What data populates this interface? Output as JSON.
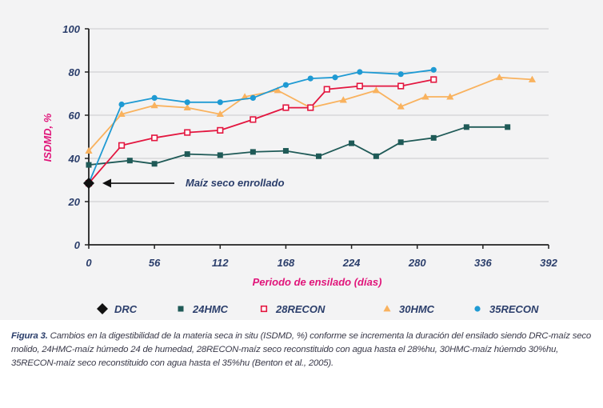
{
  "chart_data": {
    "type": "line",
    "ylabel": "ISDMD, %",
    "xlabel": "Periodo de ensilado (días)",
    "x_ticks": [
      0,
      56,
      112,
      168,
      224,
      280,
      336,
      392
    ],
    "y_ticks": [
      0,
      20,
      40,
      60,
      80,
      100
    ],
    "xlim": [
      0,
      392
    ],
    "ylim": [
      0,
      100
    ],
    "grid": "horizontal",
    "legend_position": "bottom",
    "annotation": "Maíz seco enrollado",
    "series": [
      {
        "name": "DRC",
        "color": "#111111",
        "marker": "diamond",
        "points": [
          [
            0,
            28.5
          ]
        ]
      },
      {
        "name": "24HMC",
        "color": "#1f5a57",
        "marker": "square",
        "points": [
          [
            0,
            37
          ],
          [
            35,
            39
          ],
          [
            56,
            37.5
          ],
          [
            84,
            42
          ],
          [
            112,
            41.5
          ],
          [
            140,
            43
          ],
          [
            168,
            43.5
          ],
          [
            196,
            41
          ],
          [
            224,
            47
          ],
          [
            245,
            41
          ],
          [
            266,
            47.5
          ],
          [
            294,
            49.5
          ],
          [
            322,
            54.5
          ],
          [
            357,
            54.5
          ]
        ]
      },
      {
        "name": "28RECON",
        "color": "#e3163f",
        "marker": "open-square",
        "points": [
          [
            0,
            28.5
          ],
          [
            28,
            46
          ],
          [
            56,
            49.5
          ],
          [
            84,
            52
          ],
          [
            112,
            53
          ],
          [
            140,
            58
          ],
          [
            168,
            63.5
          ],
          [
            189,
            63.5
          ],
          [
            203,
            72
          ],
          [
            231,
            73.5
          ],
          [
            266,
            73.5
          ],
          [
            294,
            76.5
          ]
        ]
      },
      {
        "name": "30HMC",
        "color": "#f9b25e",
        "marker": "triangle",
        "points": [
          [
            0,
            43.5
          ],
          [
            28,
            60.5
          ],
          [
            56,
            64.5
          ],
          [
            84,
            63.5
          ],
          [
            112,
            60.5
          ],
          [
            133,
            68.5
          ],
          [
            161,
            71.5
          ],
          [
            189,
            63.5
          ],
          [
            217,
            67
          ],
          [
            245,
            71.5
          ],
          [
            266,
            64
          ],
          [
            287,
            68.5
          ],
          [
            308,
            68.5
          ],
          [
            350,
            77.5
          ],
          [
            378,
            76.5
          ]
        ]
      },
      {
        "name": "35RECON",
        "color": "#1f9ad3",
        "marker": "circle",
        "points": [
          [
            0,
            28.5
          ],
          [
            28,
            65
          ],
          [
            56,
            68
          ],
          [
            84,
            66
          ],
          [
            112,
            66
          ],
          [
            140,
            68
          ],
          [
            168,
            74
          ],
          [
            189,
            77
          ],
          [
            210,
            77.5
          ],
          [
            231,
            80
          ],
          [
            266,
            79
          ],
          [
            294,
            81
          ]
        ]
      }
    ]
  },
  "caption": {
    "label": "Figura 3.",
    "text": " Cambios en la digestibilidad de la materia seca in situ (ISDMD, %) conforme se incrementa la duración del ensilado siendo DRC-maíz seco molido, 24HMC-maíz húmedo 24 de humedad, 28RECON-maíz seco reconstituido con agua hasta el 28%hu, 30HMC-maíz húemdo 30%hu, 35RECON-maíz seco reconstituido con agua hasta el 35%hu (Benton et al., 2005)."
  }
}
